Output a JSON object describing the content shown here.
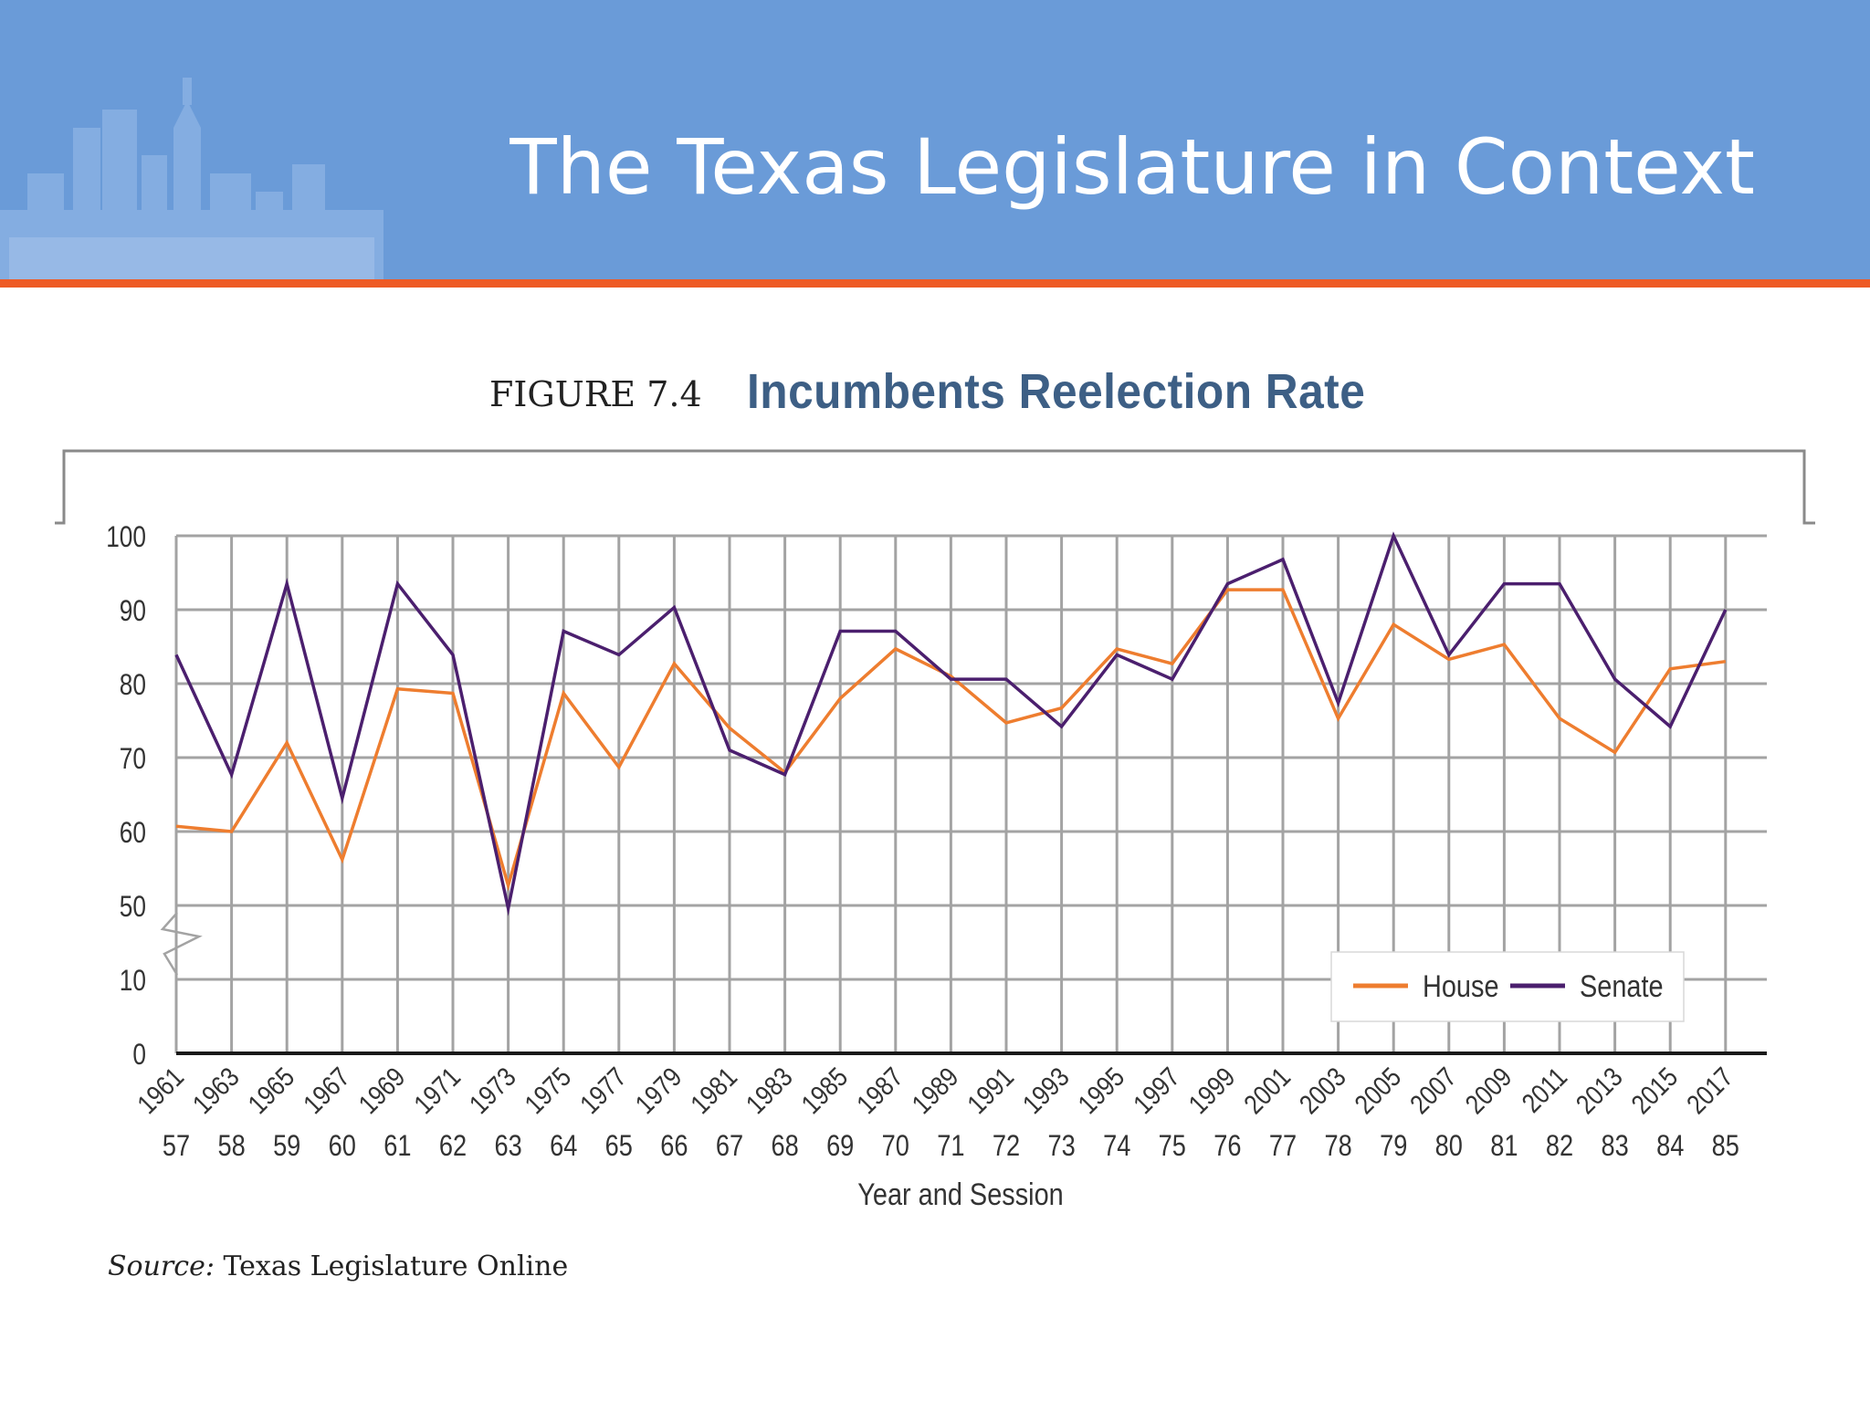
{
  "slide": {
    "title": "The Texas Legislature in Context"
  },
  "figure": {
    "label": "FIGURE 7.4",
    "title": "Incumbents Reelection Rate"
  },
  "source": {
    "label": "Source:",
    "text": "Texas Legislature Online"
  },
  "colors": {
    "header": "#6a9bd8",
    "accent": "#ee5a24",
    "house": "#ee7d2f",
    "senate": "#4b1f6e",
    "grid": "#a3a3a3"
  },
  "chart_data": {
    "type": "line",
    "xlabel": "Year and Session",
    "ylabel": "",
    "yticks": [
      0,
      10,
      50,
      60,
      70,
      80,
      90,
      100
    ],
    "ylim": [
      0,
      100
    ],
    "axis_break": "between 10 and 50",
    "grid": true,
    "legend": "bottom-right",
    "categories": [
      "1961",
      "1963",
      "1965",
      "1967",
      "1969",
      "1971",
      "1973",
      "1975",
      "1977",
      "1979",
      "1981",
      "1983",
      "1985",
      "1987",
      "1989",
      "1991",
      "1993",
      "1995",
      "1997",
      "1999",
      "2001",
      "2003",
      "2005",
      "2007",
      "2009",
      "2011",
      "2013",
      "2015",
      "2017"
    ],
    "sessions": [
      "57",
      "58",
      "59",
      "60",
      "61",
      "62",
      "63",
      "64",
      "65",
      "66",
      "67",
      "68",
      "69",
      "70",
      "71",
      "72",
      "73",
      "74",
      "75",
      "76",
      "77",
      "78",
      "79",
      "80",
      "81",
      "82",
      "83",
      "84",
      "85"
    ],
    "series": [
      {
        "name": "House",
        "color": "#ee7d2f",
        "values": [
          60.7,
          60,
          72,
          56.2,
          79.3,
          78.7,
          52.7,
          78.7,
          68.7,
          82.7,
          74,
          68,
          78,
          84.7,
          81,
          74.7,
          76.7,
          84.7,
          82.7,
          92.7,
          92.7,
          75.3,
          88,
          83.3,
          85.3,
          75.3,
          70.7,
          82,
          83
        ]
      },
      {
        "name": "Senate",
        "color": "#4b1f6e",
        "values": [
          83.9,
          67.7,
          93.5,
          64.5,
          93.5,
          83.9,
          48.4,
          87.1,
          83.9,
          90.3,
          71,
          67.7,
          87.1,
          87.1,
          80.6,
          80.6,
          74.2,
          83.9,
          80.6,
          93.5,
          96.8,
          77.4,
          100,
          83.9,
          93.5,
          93.5,
          80.6,
          74.2,
          90
        ]
      }
    ]
  }
}
